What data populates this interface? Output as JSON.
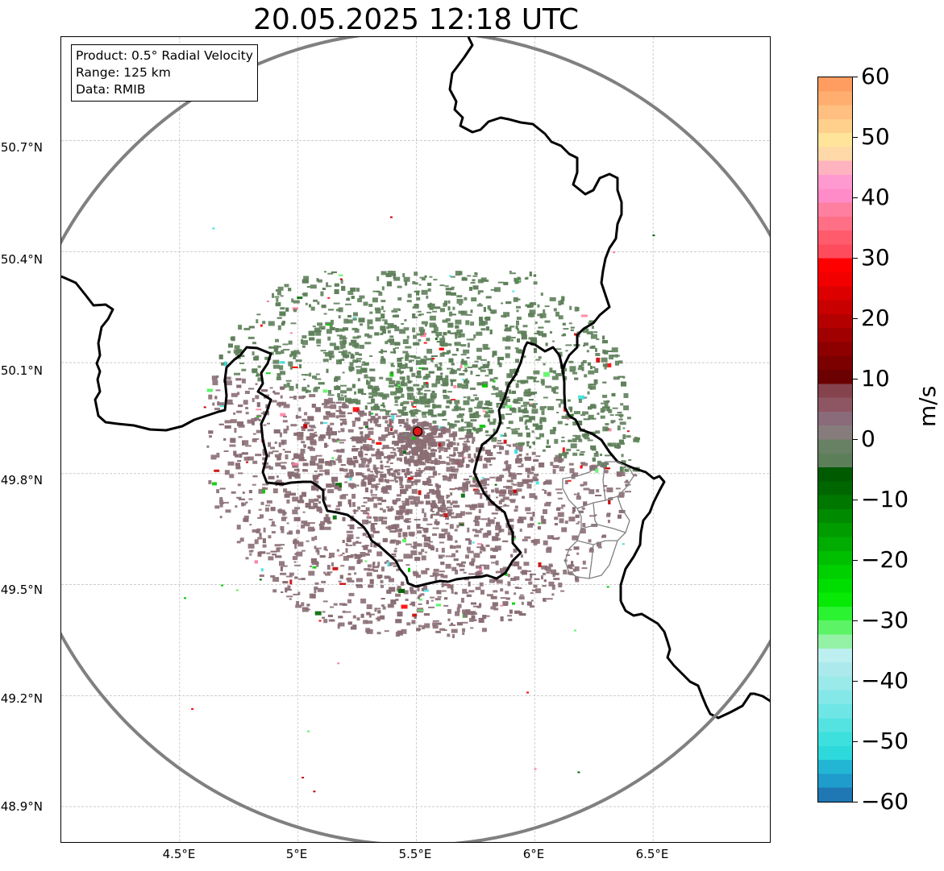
{
  "title": "20.05.2025 12:18 UTC",
  "info": {
    "product": "Product: 0.5° Radial Velocity",
    "range": "Range: 125 km",
    "data": "Data: RMIB"
  },
  "lat_labels": [
    "50.7°N",
    "50.4°N",
    "50.1°N",
    "49.8°N",
    "49.5°N",
    "49.2°N",
    "48.9°N"
  ],
  "lon_labels": [
    "4.5°E",
    "5°E",
    "5.5°E",
    "6°E",
    "6.5°E"
  ],
  "map": {
    "extent": {
      "lon_min": 4.0,
      "lon_max": 7.0,
      "lat_min": 48.8,
      "lat_max": 50.98
    },
    "radar_site": {
      "lon": 5.505,
      "lat": 49.914
    },
    "range_ring_km": 125,
    "colors": {
      "approach": "#8a6e74",
      "recede": "#5e7f5a",
      "border": "#000000",
      "range_ring": "#808080",
      "site": "#e0191b",
      "grid": "#b0b0b0"
    }
  },
  "colorbar": {
    "unit": "m/s",
    "min": -60,
    "max": 60,
    "tick_labels": [
      "60",
      "50",
      "40",
      "30",
      "20",
      "10",
      "0",
      "−10",
      "−20",
      "−30",
      "−40",
      "−50",
      "−60"
    ],
    "tick_values": [
      60,
      50,
      40,
      30,
      20,
      10,
      0,
      -10,
      -20,
      -30,
      -40,
      -50,
      -60
    ],
    "colors_bottom_to_top": [
      "#1f77b4",
      "#1f9ccc",
      "#22b6d4",
      "#2ed9db",
      "#3ee0de",
      "#55e3e1",
      "#6fe6e6",
      "#85e8e8",
      "#9aeaea",
      "#ace9ec",
      "#bdeff0",
      "#93f2a6",
      "#5cf466",
      "#2bf331",
      "#06ea06",
      "#00dd00",
      "#00cf00",
      "#00be00",
      "#00ad00",
      "#009c00",
      "#008a00",
      "#007800",
      "#006700",
      "#005a00",
      "#5c7f5a",
      "#688064",
      "#877c7c",
      "#8a6b7a",
      "#8e5663",
      "#84434d",
      "#6b0000",
      "#7c0000",
      "#8e0000",
      "#a10000",
      "#b50000",
      "#c90000",
      "#dd0000",
      "#f20000",
      "#ff0000",
      "#ff4c5c",
      "#ff5b6c",
      "#ff6f85",
      "#ff7fa0",
      "#ff8cc8",
      "#ff9ad0",
      "#ffb3bf",
      "#ffd8a8",
      "#ffe49a",
      "#ffd08c",
      "#ffbf80",
      "#ffae70",
      "#ff9d60"
    ]
  }
}
